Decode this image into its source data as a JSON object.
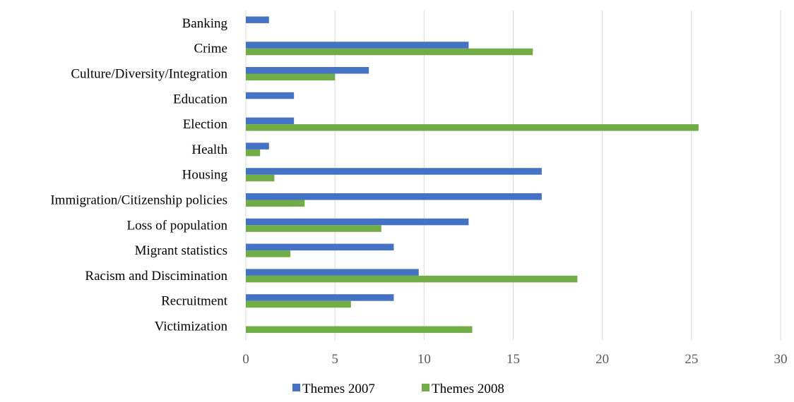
{
  "chart_data": {
    "type": "bar",
    "orientation": "horizontal",
    "categories": [
      "Banking",
      "Crime",
      "Culture/Diversity/Integration",
      "Education",
      "Election",
      "Health",
      "Housing",
      "Immigration/Citizenship policies",
      "Loss of population",
      "Migrant statistics",
      "Racism and Discimination",
      "Recruitment",
      "Victimization"
    ],
    "series": [
      {
        "name": "Themes 2007",
        "color": "#4472c4",
        "values": [
          1.3,
          12.5,
          6.9,
          2.7,
          2.7,
          1.3,
          16.6,
          16.6,
          12.5,
          8.3,
          9.7,
          8.3,
          0
        ]
      },
      {
        "name": "Themes 2008",
        "color": "#70ad47",
        "values": [
          0,
          16.1,
          5.0,
          0,
          25.4,
          0.8,
          1.6,
          3.3,
          7.6,
          2.5,
          18.6,
          5.9,
          12.7
        ]
      }
    ],
    "x_ticks": [
      "0",
      "5",
      "10",
      "15",
      "20",
      "25",
      "30"
    ],
    "xlim": [
      0,
      30
    ],
    "grid": "vertical",
    "legend_position": "bottom"
  }
}
